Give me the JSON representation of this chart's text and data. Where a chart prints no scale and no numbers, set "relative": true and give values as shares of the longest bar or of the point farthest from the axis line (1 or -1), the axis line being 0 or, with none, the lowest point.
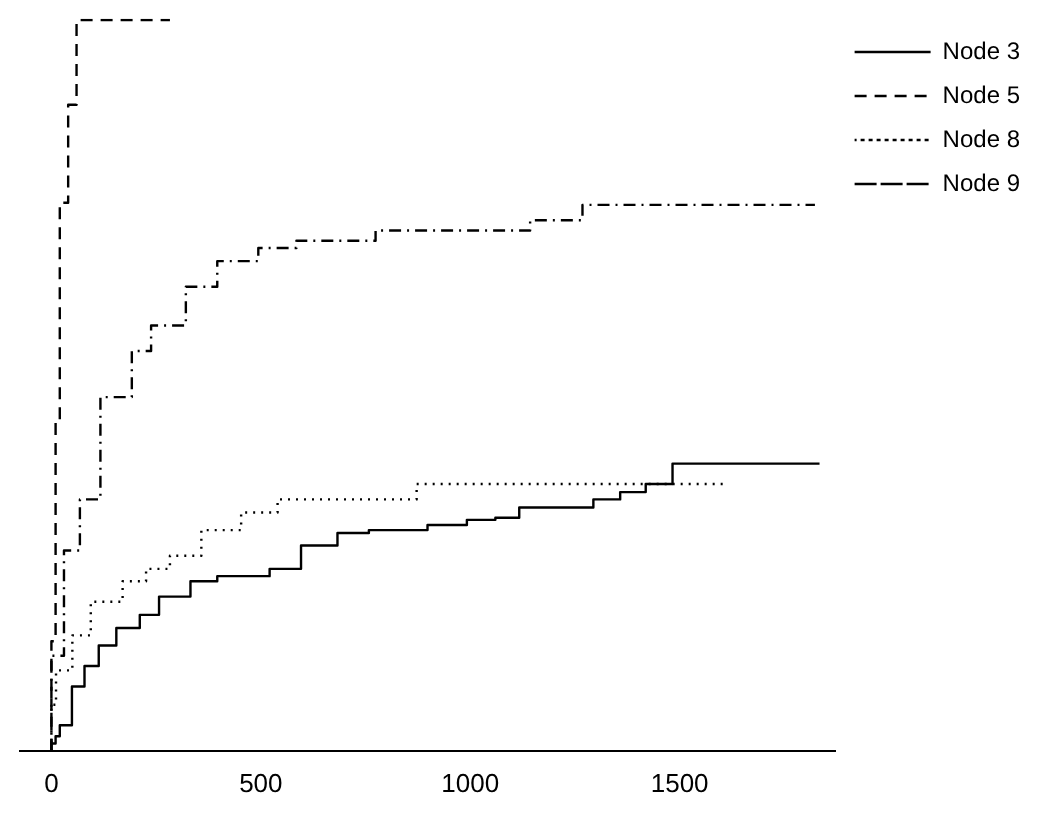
{
  "chart_data": {
    "type": "step",
    "relative": true,
    "xlim": [
      -75,
      1870
    ],
    "xticks": [
      0,
      500,
      1000,
      1500
    ],
    "tick_labels": "x",
    "legend": "top right",
    "grid": false,
    "series": [
      {
        "name": "Node 3",
        "color": "#000000",
        "line_style": "solid",
        "x": [
          0,
          10,
          20,
          49,
          79,
          113,
          155,
          211,
          257,
          332,
          396,
          521,
          596,
          683,
          758,
          898,
          992,
          1060,
          1117,
          1294,
          1358,
          1419,
          1483,
          1679,
          1834
        ],
        "values": [
          0,
          0.01,
          0.02,
          0.035,
          0.088,
          0.116,
          0.144,
          0.168,
          0.186,
          0.211,
          0.232,
          0.239,
          0.249,
          0.281,
          0.298,
          0.302,
          0.309,
          0.316,
          0.319,
          0.333,
          0.344,
          0.354,
          0.365,
          0.393,
          0.393
        ]
      },
      {
        "name": "Node 5",
        "color": "#000000",
        "line_style": "dashed",
        "x": [
          0,
          10,
          20,
          40,
          60,
          151,
          283
        ],
        "values": [
          0,
          0.15,
          0.45,
          0.75,
          0.884,
          1,
          1
        ]
      },
      {
        "name": "Node 8",
        "color": "#000000",
        "line_style": "dotted",
        "x": [
          0,
          11,
          50,
          94,
          170,
          226,
          283,
          358,
          453,
          540,
          872,
          1030,
          1615
        ],
        "values": [
          0,
          0.063,
          0.11,
          0.158,
          0.204,
          0.232,
          0.249,
          0.267,
          0.302,
          0.326,
          0.344,
          0.365,
          0.365
        ]
      },
      {
        "name": "Node 9",
        "color": "#000000",
        "line_style": "dashdot",
        "x": [
          0,
          30,
          68,
          117,
          192,
          238,
          321,
          396,
          494,
          585,
          774,
          1143,
          1268,
          1340,
          1823
        ],
        "values": [
          0,
          0.13,
          0.274,
          0.344,
          0.484,
          0.547,
          0.582,
          0.635,
          0.67,
          0.688,
          0.698,
          0.712,
          0.726,
          0.747,
          0.747
        ]
      }
    ]
  }
}
